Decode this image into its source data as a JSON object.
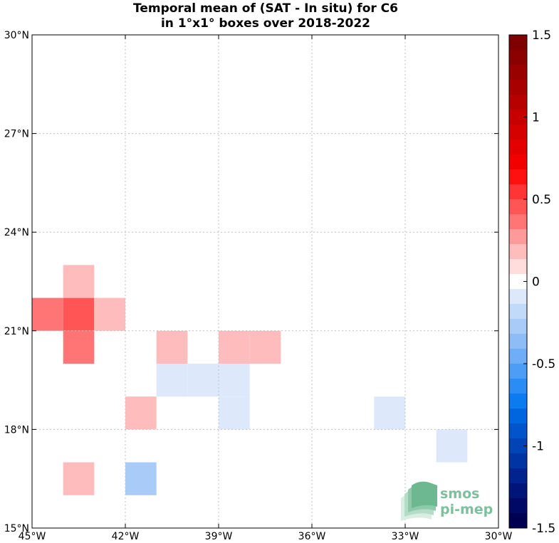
{
  "title": {
    "line1": "Temporal mean of (SAT - In situ) for C6",
    "line2": "in 1°x1° boxes over 2018-2022"
  },
  "map": {
    "lon_range": [
      -45,
      -30
    ],
    "lat_range": [
      15,
      30
    ],
    "grid": "dotted",
    "x_ticks": [
      {
        "value": -45,
        "label": "45°W"
      },
      {
        "value": -42,
        "label": "42°W"
      },
      {
        "value": -39,
        "label": "39°W"
      },
      {
        "value": -36,
        "label": "36°W"
      },
      {
        "value": -33,
        "label": "33°W"
      },
      {
        "value": -30,
        "label": "30°W"
      }
    ],
    "y_ticks": [
      {
        "value": 15,
        "label": "15°N"
      },
      {
        "value": 18,
        "label": "18°N"
      },
      {
        "value": 21,
        "label": "21°N"
      },
      {
        "value": 24,
        "label": "24°N"
      },
      {
        "value": 27,
        "label": "27°N"
      },
      {
        "value": 30,
        "label": "30°N"
      }
    ],
    "cells": [
      {
        "lon": -45,
        "lat": 21,
        "value": 0.35
      },
      {
        "lon": -44,
        "lat": 21,
        "value": 0.45
      },
      {
        "lon": -43,
        "lat": 21,
        "value": 0.15
      },
      {
        "lon": -44,
        "lat": 22,
        "value": 0.15
      },
      {
        "lon": -44,
        "lat": 20,
        "value": 0.35
      },
      {
        "lon": -41,
        "lat": 20,
        "value": 0.15
      },
      {
        "lon": -39,
        "lat": 20,
        "value": 0.2
      },
      {
        "lon": -38,
        "lat": 20,
        "value": 0.2
      },
      {
        "lon": -41,
        "lat": 19,
        "value": -0.1
      },
      {
        "lon": -40,
        "lat": 19,
        "value": -0.1
      },
      {
        "lon": -39,
        "lat": 19,
        "value": -0.1
      },
      {
        "lon": -39,
        "lat": 18,
        "value": -0.1
      },
      {
        "lon": -42,
        "lat": 18,
        "value": 0.15
      },
      {
        "lon": -34,
        "lat": 18,
        "value": -0.1
      },
      {
        "lon": -32,
        "lat": 17,
        "value": -0.1
      },
      {
        "lon": -44,
        "lat": 16,
        "value": 0.15
      },
      {
        "lon": -42,
        "lat": 16,
        "value": -0.25
      }
    ]
  },
  "colorbar": {
    "min": -1.5,
    "max": 1.5,
    "labels": [
      {
        "value": 1.5,
        "label": "1.5"
      },
      {
        "value": 1,
        "label": "1"
      },
      {
        "value": 0.5,
        "label": "0.5"
      },
      {
        "value": 0,
        "label": "0"
      },
      {
        "value": -0.5,
        "label": "-0.5"
      },
      {
        "value": -1,
        "label": "-1"
      },
      {
        "value": -1.5,
        "label": "-1.5"
      }
    ],
    "colors_top_to_bottom": [
      "#7f0000",
      "#8b0000",
      "#990000",
      "#a80000",
      "#b70000",
      "#c60000",
      "#d50000",
      "#e40000",
      "#f20000",
      "#ff1010",
      "#ff3535",
      "#ff5555",
      "#ff7575",
      "#ff9a9a",
      "#ffbcbc",
      "#ffdddd",
      "#ffffff",
      "#dde9fb",
      "#c2daf9",
      "#a8cbf8",
      "#8dbcf7",
      "#6fadf6",
      "#4c9df6",
      "#2a8df5",
      "#0b7cf0",
      "#0066e0",
      "#0055cc",
      "#0044b8",
      "#0033a3",
      "#00238f",
      "#00147a",
      "#000a66",
      "#000052"
    ]
  },
  "logo": {
    "line1": "smos",
    "line2": "pi-mep"
  }
}
